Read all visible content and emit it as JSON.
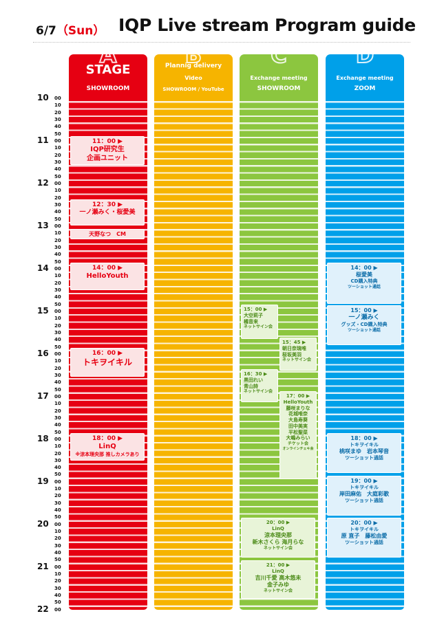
{
  "header": {
    "date": "6/7",
    "day": "（Sun）",
    "title": "IQP Live stream Program guide"
  },
  "columns": {
    "a": {
      "letter": "A",
      "line1": "STAGE",
      "line2": "SHOWROOM"
    },
    "b": {
      "letter": "B",
      "line1": "Plannig delivery",
      "line2": "Video",
      "line3": "SHOWROOM / YouTube"
    },
    "c": {
      "letter": "C",
      "line1": "Exchange meeting",
      "line2": "SHOWROOM"
    },
    "d": {
      "letter": "D",
      "line1": "Exchange meeting",
      "line2": "ZOOM"
    }
  },
  "timeline": {
    "hours": [
      "10",
      "11",
      "12",
      "13",
      "14",
      "15",
      "16",
      "17",
      "18",
      "19",
      "20",
      "21",
      "22"
    ],
    "minutes": [
      "00",
      "10",
      "20",
      "30",
      "40",
      "50"
    ],
    "last_minute": "00"
  },
  "events": {
    "a": [
      {
        "time": "11：00 ▶",
        "lines": [
          "IQP研究生",
          "企画ユニット"
        ]
      },
      {
        "time": "12：30 ▶",
        "lines": [
          "一ノ瀬みく・桜愛美"
        ]
      },
      {
        "time": "",
        "lines": [
          "天野なつ　CM"
        ]
      },
      {
        "time": "14：00 ▶",
        "lines": [
          "HelloYouth"
        ]
      },
      {
        "time": "16：00 ▶",
        "lines": [
          "トキヲイキル"
        ]
      },
      {
        "time": "18：00 ▶",
        "lines": [
          "LinQ",
          "※涼本理央那 推しカメラあり"
        ]
      }
    ],
    "c": [
      {
        "time": "15：00 ▶",
        "lines": [
          "大空莉子",
          "橘音来",
          "ネットサイン会"
        ]
      },
      {
        "time": "15：45 ▶",
        "lines": [
          "朝日奈琉唯",
          "桜坂美羽",
          "ネットサイン会"
        ]
      },
      {
        "time": "16：30 ▶",
        "lines": [
          "黒田れい",
          "青山詩",
          "ネットサイン会"
        ]
      },
      {
        "time": "17：00 ▶",
        "lines": [
          "HelloYouth",
          "藤咲まりな",
          "花城唯奈",
          "大島寿葵",
          "田中美実",
          "平松聖菜",
          "大嶋みらい",
          "チケット会",
          "オンラインチェキ会"
        ]
      },
      {
        "time": "20：00 ▶",
        "lines": [
          "LinQ",
          "涼本理央那",
          "新木さくら 海月らな",
          "ネットサイン会"
        ]
      },
      {
        "time": "21：00 ▶",
        "lines": [
          "LinQ",
          "吉川千愛 高木悠未",
          "金子みゆ",
          "ネットサイン会"
        ]
      }
    ],
    "d": [
      {
        "time": "14：00 ▶",
        "lines": [
          "桜愛美",
          "CD購入特典",
          "ツーショット通話"
        ]
      },
      {
        "time": "15：00 ▶",
        "lines": [
          "一ノ瀬みく",
          "グッズ・CD購入特典",
          "ツーショット通話"
        ]
      },
      {
        "time": "18：00 ▶",
        "lines": [
          "トキヲイキル",
          "桃咲まゆ　岩本琴音",
          "ツーショット通話"
        ]
      },
      {
        "time": "19：00 ▶",
        "lines": [
          "トキヲイキル",
          "岸田麻佑　大庭彩歌",
          "ツーショット通話"
        ]
      },
      {
        "time": "20：00 ▶",
        "lines": [
          "トキヲイキル",
          "原 直子　藤松由愛",
          "ツーショット通話"
        ]
      }
    ]
  },
  "colors": {
    "a": "#e60012",
    "b": "#f6b400",
    "c": "#8cc63f",
    "d": "#00a0e9"
  }
}
